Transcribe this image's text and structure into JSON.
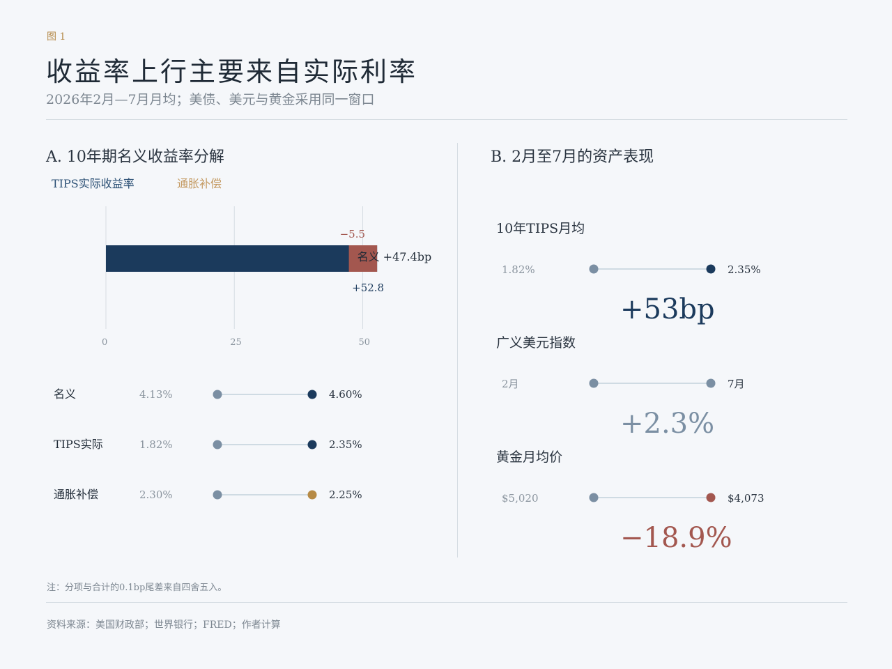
{
  "figure_label": "图 1",
  "title": "收益率上行主要来自实际利率",
  "subtitle": "2026年2月—7月月均；美债、美元与黄金采用同一窗口",
  "colors": {
    "real": "#1b3a5c",
    "inflation_neg": "#a3574f",
    "inflation_pos": "#b68a45",
    "start_dot": "#7b8fa3",
    "connector": "#cfdbe3",
    "accent_red": "#a3574f"
  },
  "panel_a": {
    "title": "A. 10年期名义收益率分解",
    "legend": [
      "TIPS实际收益率",
      "通胀补偿"
    ],
    "bar_label": "名义 +47.4bp",
    "annotations": {
      "inflation": "−5.5",
      "real": "+52.8"
    },
    "dumbbells": [
      {
        "label": "名义",
        "start": "4.13%",
        "end": "4.60%",
        "start_val": 4.13,
        "end_val": 4.6,
        "end_color": "#1b3a5c"
      },
      {
        "label": "TIPS实际",
        "start": "1.82%",
        "end": "2.35%",
        "start_val": 1.82,
        "end_val": 2.35,
        "end_color": "#1b3a5c"
      },
      {
        "label": "通胀补偿",
        "start": "2.30%",
        "end": "2.25%",
        "start_val": 2.3,
        "end_val": 2.25,
        "end_color": "#b68a45"
      }
    ]
  },
  "panel_b": {
    "title": "B. 2月至7月的资产表现",
    "items": [
      {
        "label": "10年TIPS月均",
        "start": "1.82%",
        "end": "2.35%",
        "change": "+53bp",
        "end_color": "#1b3a5c",
        "change_color": "#1b3a5c"
      },
      {
        "label": "广义美元指数",
        "start": "2月",
        "end": "7月",
        "change": "+2.3%",
        "end_color": "#7b8fa3",
        "change_color": "#7b8fa3"
      },
      {
        "label": "黄金月均价",
        "start": "$5,020",
        "end": "$4,073",
        "change": "−18.9%",
        "end_color": "#a3574f",
        "change_color": "#a3574f"
      }
    ]
  },
  "note": "注：分项与合计的0.1bp尾差来自四舍五入。",
  "source": "资料来源：美国财政部；世界银行；FRED；作者计算",
  "chart_data": [
    {
      "type": "bar",
      "orientation": "horizontal",
      "stacked": true,
      "categories": [
        "名义"
      ],
      "series": [
        {
          "name": "TIPS实际收益率",
          "values": [
            52.8
          ]
        },
        {
          "name": "通胀补偿",
          "values": [
            -5.5
          ]
        }
      ],
      "total_label": "名义 +47.4bp",
      "xticks": [
        0,
        25,
        50
      ],
      "xlim": [
        0,
        55
      ],
      "grid": true
    },
    {
      "type": "scatter",
      "categories": [
        "名义",
        "TIPS实际",
        "通胀补偿"
      ],
      "series": [
        {
          "values": [
            4.13,
            1.82,
            2.3
          ]
        },
        {
          "values": [
            4.6,
            2.35,
            2.25
          ]
        }
      ]
    }
  ]
}
